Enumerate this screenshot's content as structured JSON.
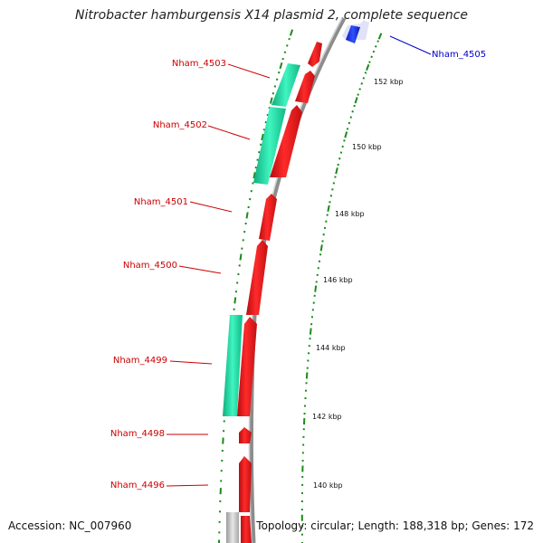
{
  "title": "Nitrobacter hamburgensis X14 plasmid 2, complete sequence",
  "footer": {
    "accession": "Accession: NC_007960",
    "summary": "Topology: circular; Length: 188,318 bp; Genes: 172"
  },
  "colors": {
    "forward_cds": "#e8171b",
    "forward_cds_dark": "#b50d0f",
    "reverse_orf": "#1fe3a8",
    "reverse_orf_dark": "#0fae7e",
    "highlight_blue": "#0a2fe0",
    "backbone": "#8c8c8c",
    "tick_green": "#1a8a1a",
    "label_red": "#cc0000",
    "label_blue": "#0000cc"
  },
  "ruler_labels": [
    "152 kbp",
    "150 kbp",
    "148 kbp",
    "146 kbp",
    "144 kbp",
    "142 kbp",
    "140 kbp"
  ],
  "gene_labels": [
    {
      "name": "Nham_4505",
      "color": "blue"
    },
    {
      "name": "Nham_4503",
      "color": "red"
    },
    {
      "name": "Nham_4502",
      "color": "red"
    },
    {
      "name": "Nham_4501",
      "color": "red"
    },
    {
      "name": "Nham_4500",
      "color": "red"
    },
    {
      "name": "Nham_4499",
      "color": "red"
    },
    {
      "name": "Nham_4498",
      "color": "red"
    },
    {
      "name": "Nham_4496",
      "color": "red"
    }
  ]
}
